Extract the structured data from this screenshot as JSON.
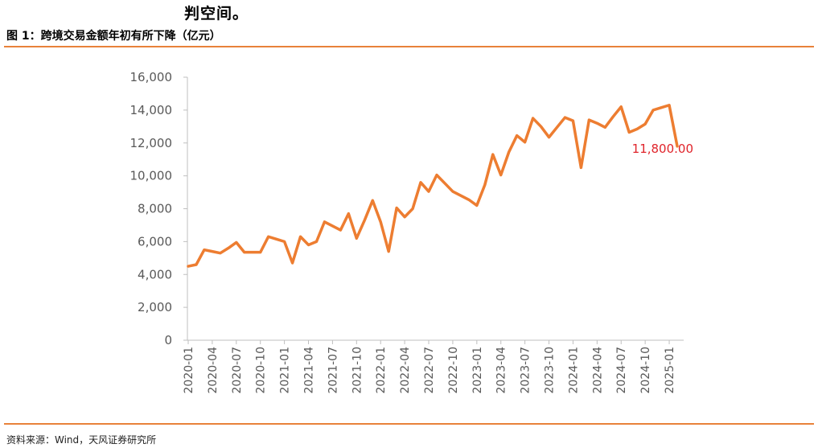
{
  "header": {
    "top_text": "判空间。",
    "figure_title": "图 1：跨境交易金额年初有所下降（亿元）"
  },
  "footer": {
    "source": "资料来源：Wind，天风证券研究所"
  },
  "colors": {
    "line": "#ED7D31",
    "label": "#E0242B",
    "rule": "#E8823A",
    "axis": "#BFBFBF",
    "tick_text": "#595959"
  },
  "chart_data": {
    "type": "line",
    "title": "",
    "xlabel": "",
    "ylabel": "",
    "ylim": [
      0,
      16000
    ],
    "yticks": [
      0,
      2000,
      4000,
      6000,
      8000,
      10000,
      12000,
      14000,
      16000
    ],
    "ytick_labels": [
      "0",
      "2,000",
      "4,000",
      "6,000",
      "8,000",
      "10,000",
      "12,000",
      "14,000",
      "16,000"
    ],
    "grid": false,
    "legend": "none",
    "xtick_labels": [
      "2020-01",
      "2020-04",
      "2020-07",
      "2020-10",
      "2021-01",
      "2021-04",
      "2021-07",
      "2021-10",
      "2022-01",
      "2022-04",
      "2022-07",
      "2022-10",
      "2023-01",
      "2023-04",
      "2023-07",
      "2023-10",
      "2024-01",
      "2024-04",
      "2024-07",
      "2024-10",
      "2025-01"
    ],
    "x": [
      "2020-01",
      "2020-02",
      "2020-03",
      "2020-04",
      "2020-05",
      "2020-06",
      "2020-07",
      "2020-08",
      "2020-09",
      "2020-10",
      "2020-11",
      "2020-12",
      "2021-01",
      "2021-02",
      "2021-03",
      "2021-04",
      "2021-05",
      "2021-06",
      "2021-07",
      "2021-08",
      "2021-09",
      "2021-10",
      "2021-11",
      "2021-12",
      "2022-01",
      "2022-02",
      "2022-03",
      "2022-04",
      "2022-05",
      "2022-06",
      "2022-07",
      "2022-08",
      "2022-09",
      "2022-10",
      "2022-11",
      "2022-12",
      "2023-01",
      "2023-02",
      "2023-03",
      "2023-04",
      "2023-05",
      "2023-06",
      "2023-07",
      "2023-08",
      "2023-09",
      "2023-10",
      "2023-11",
      "2023-12",
      "2024-01",
      "2024-02",
      "2024-03",
      "2024-04",
      "2024-05",
      "2024-06",
      "2024-07",
      "2024-08",
      "2024-09",
      "2024-10",
      "2024-11",
      "2024-12",
      "2025-01",
      "2025-02"
    ],
    "series": [
      {
        "values": [
          4500,
          4600,
          5500,
          5400,
          5300,
          5600,
          5950,
          5350,
          5350,
          5350,
          6300,
          6150,
          6000,
          4700,
          6300,
          5800,
          6000,
          7200,
          6950,
          6700,
          7700,
          6200,
          7300,
          8500,
          7200,
          5400,
          8050,
          7500,
          8000,
          9600,
          9050,
          10050,
          9550,
          9050,
          8800,
          8550,
          8200,
          9450,
          11300,
          10050,
          11450,
          12450,
          12050,
          13500,
          13000,
          12350,
          12950,
          13550,
          13350,
          10500,
          13400,
          13200,
          12950,
          13600,
          14200,
          12650,
          12850,
          13150,
          14000,
          14150,
          14300,
          11800
        ]
      }
    ],
    "annotation": {
      "x": "2025-02",
      "value": 11800,
      "text": "11,800.00"
    }
  }
}
